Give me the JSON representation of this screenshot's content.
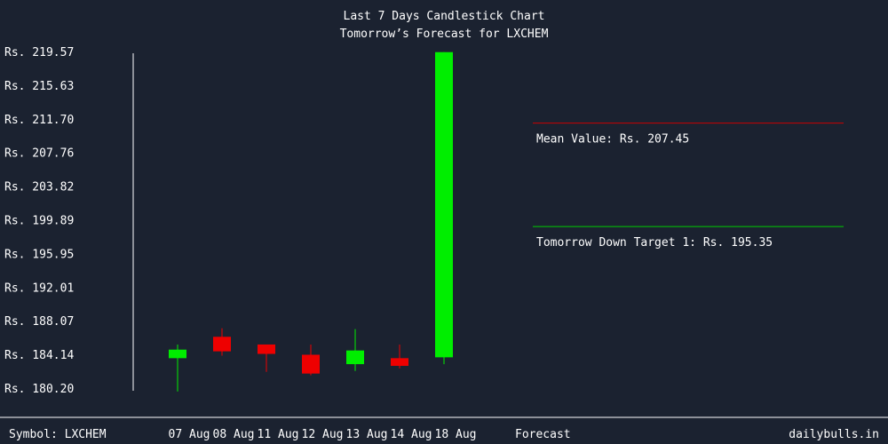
{
  "chart_data": {
    "type": "candlestick",
    "title": "Last 7 Days Candlestick Chart",
    "subtitle": "Tomorrow’s Forecast for LXCHEM",
    "y_tick_labels": [
      "Rs. 219.57",
      "Rs. 215.63",
      "Rs. 211.70",
      "Rs. 207.76",
      "Rs. 203.82",
      "Rs. 199.89",
      "Rs. 195.95",
      "Rs. 192.01",
      "Rs. 188.07",
      "Rs. 184.14",
      "Rs. 180.20"
    ],
    "y_ticks": [
      219.57,
      215.63,
      211.7,
      207.76,
      203.82,
      199.89,
      195.95,
      192.01,
      188.07,
      184.14,
      180.2
    ],
    "ylim": [
      180.2,
      219.57
    ],
    "candles": [
      {
        "label": "07 Aug",
        "open": 183.8,
        "close": 184.8,
        "high": 185.4,
        "low": 179.9,
        "color": "#00ee00"
      },
      {
        "label": "08 Aug",
        "open": 186.3,
        "close": 184.6,
        "high": 187.3,
        "low": 184.1,
        "color": "#ee0000"
      },
      {
        "label": "11 Aug",
        "open": 185.4,
        "close": 184.3,
        "high": 185.4,
        "low": 182.2,
        "color": "#ee0000"
      },
      {
        "label": "12 Aug",
        "open": 184.2,
        "close": 182.0,
        "high": 185.4,
        "low": 181.8,
        "color": "#ee0000"
      },
      {
        "label": "13 Aug",
        "open": 183.1,
        "close": 184.7,
        "high": 187.2,
        "low": 182.3,
        "color": "#00ee00"
      },
      {
        "label": "14 Aug",
        "open": 183.8,
        "close": 182.9,
        "high": 185.4,
        "low": 182.6,
        "color": "#ee0000"
      },
      {
        "label": "18 Aug",
        "open": 183.9,
        "close": 219.6,
        "high": 219.6,
        "low": 183.1,
        "color": "#00ee00"
      }
    ],
    "forecast_label": "Forecast",
    "lines": [
      {
        "label": "Mean Value: Rs. 207.45",
        "value": 207.45,
        "color": "#cc0000"
      },
      {
        "label": "Tomorrow Down Target 1: Rs. 195.35",
        "value": 195.35,
        "color": "#00cc00"
      }
    ],
    "axis_color": "#ffffff"
  },
  "footer": {
    "symbol": "Symbol: LXCHEM",
    "site": "dailybulls.in"
  }
}
